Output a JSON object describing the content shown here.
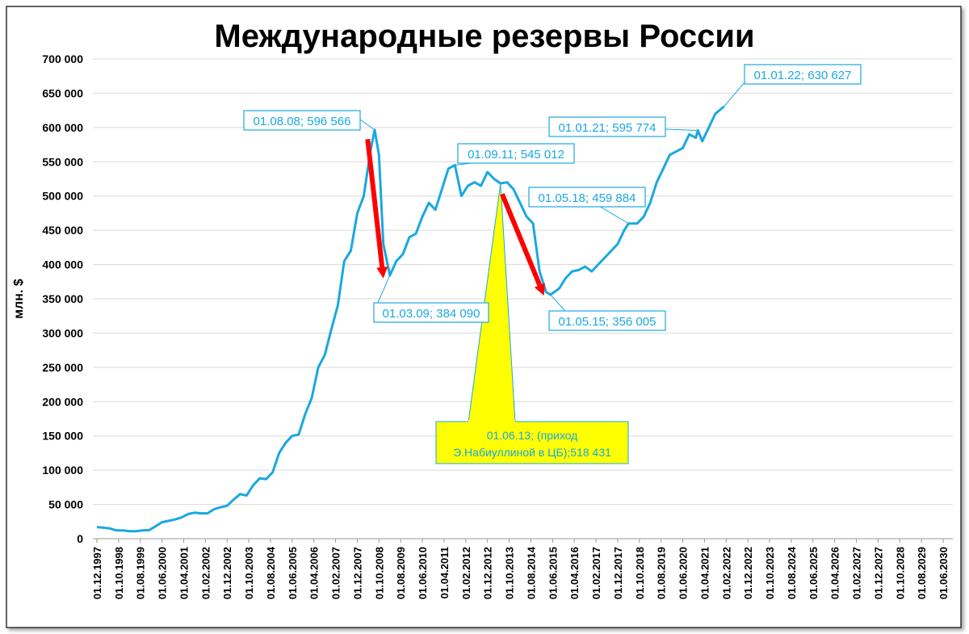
{
  "chart_data": {
    "type": "line",
    "title": "Международные резервы России",
    "ylabel": "млн. $",
    "xlabel": "",
    "ylim": [
      0,
      700000
    ],
    "grid": true,
    "line_color": "#1AA8E0",
    "arrow_color": "#FF0000",
    "y_ticks": [
      {
        "value": 0,
        "label": "0"
      },
      {
        "value": 50000,
        "label": "50 000"
      },
      {
        "value": 100000,
        "label": "100 000"
      },
      {
        "value": 150000,
        "label": "150 000"
      },
      {
        "value": 200000,
        "label": "200 000"
      },
      {
        "value": 250000,
        "label": "250 000"
      },
      {
        "value": 300000,
        "label": "300 000"
      },
      {
        "value": 350000,
        "label": "350 000"
      },
      {
        "value": 400000,
        "label": "400 000"
      },
      {
        "value": 450000,
        "label": "450 000"
      },
      {
        "value": 500000,
        "label": "500 000"
      },
      {
        "value": 550000,
        "label": "550 000"
      },
      {
        "value": 600000,
        "label": "600 000"
      },
      {
        "value": 650000,
        "label": "650 000"
      },
      {
        "value": 700000,
        "label": "700 000"
      }
    ],
    "x_ticks": [
      "01.12.1997",
      "01.10.1998",
      "01.08.1999",
      "01.06.2000",
      "01.04.2001",
      "01.02.2002",
      "01.12.2002",
      "01.10.2003",
      "01.08.2004",
      "01.06.2005",
      "01.04.2006",
      "01.02.2007",
      "01.12.2007",
      "01.10.2008",
      "01.08.2009",
      "01.06.2010",
      "01.04.2011",
      "01.02.2012",
      "01.12.2012",
      "01.10.2013",
      "01.08.2014",
      "01.06.2015",
      "01.04.2016",
      "01.02.2017",
      "01.12.2017",
      "01.10.2018",
      "01.08.2019",
      "01.06.2020",
      "01.04.2021",
      "01.02.2022",
      "01.12.2022",
      "01.10.2023",
      "01.08.2024",
      "01.06.2025",
      "01.04.2026",
      "01.02.2027",
      "01.12.2027",
      "01.10.2028",
      "01.08.2029",
      "01.06.2030"
    ],
    "series": [
      {
        "x": [
          "1997-12",
          "1998-03",
          "1998-06",
          "1998-09",
          "1998-12",
          "1999-03",
          "1999-06",
          "1999-09",
          "1999-12",
          "2000-03",
          "2000-06",
          "2000-09",
          "2000-12",
          "2001-03",
          "2001-06",
          "2001-09",
          "2001-12",
          "2002-03",
          "2002-06",
          "2002-09",
          "2002-12",
          "2003-03",
          "2003-06",
          "2003-09",
          "2003-12",
          "2004-03",
          "2004-06",
          "2004-09",
          "2004-12",
          "2005-03",
          "2005-06",
          "2005-09",
          "2005-12",
          "2006-03",
          "2006-06",
          "2006-09",
          "2006-12",
          "2007-03",
          "2007-06",
          "2007-09",
          "2007-12",
          "2008-03",
          "2008-06",
          "2008-08",
          "2008-10",
          "2008-12",
          "2009-03",
          "2009-06",
          "2009-09",
          "2009-12",
          "2010-03",
          "2010-06",
          "2010-09",
          "2010-12",
          "2011-03",
          "2011-06",
          "2011-09",
          "2011-12",
          "2012-03",
          "2012-06",
          "2012-09",
          "2012-12",
          "2013-03",
          "2013-06",
          "2013-09",
          "2013-12",
          "2014-03",
          "2014-06",
          "2014-09",
          "2014-12",
          "2015-03",
          "2015-05",
          "2015-09",
          "2015-12",
          "2016-03",
          "2016-06",
          "2016-09",
          "2016-12",
          "2017-03",
          "2017-06",
          "2017-09",
          "2017-12",
          "2018-03",
          "2018-05",
          "2018-09",
          "2018-12",
          "2019-03",
          "2019-06",
          "2019-09",
          "2019-12",
          "2020-03",
          "2020-06",
          "2020-09",
          "2020-12",
          "2021-01",
          "2021-03",
          "2021-06",
          "2021-09",
          "2021-12",
          "2022-01"
        ],
        "values": [
          17000,
          16000,
          15000,
          12000,
          12000,
          11000,
          11000,
          12000,
          12500,
          18000,
          24000,
          26000,
          28000,
          31000,
          36000,
          38000,
          37000,
          37000,
          43000,
          46000,
          48000,
          57000,
          65000,
          63000,
          78000,
          88000,
          87000,
          97000,
          125000,
          140000,
          150000,
          152000,
          182000,
          205000,
          250000,
          268000,
          305000,
          340000,
          405000,
          420000,
          475000,
          500000,
          565000,
          596566,
          560000,
          430000,
          384090,
          405000,
          415000,
          440000,
          445000,
          470000,
          490000,
          480000,
          510000,
          540000,
          545012,
          500000,
          515000,
          520000,
          515000,
          535000,
          525000,
          518431,
          520000,
          510000,
          490000,
          470000,
          460000,
          390000,
          360000,
          356005,
          365000,
          380000,
          390000,
          392000,
          397000,
          390000,
          400000,
          410000,
          420000,
          430000,
          450000,
          459884,
          460000,
          470000,
          490000,
          520000,
          540000,
          560000,
          565000,
          570000,
          590000,
          585000,
          595774,
          580000,
          600000,
          620000,
          628000,
          630627
        ]
      }
    ],
    "annotations": [
      {
        "label": "01.08.08; 596 566",
        "x": "2008-08",
        "value": 596566
      },
      {
        "label": "01.03.09; 384 090",
        "x": "2009-03",
        "value": 384090
      },
      {
        "label": "01.09.11; 545 012",
        "x": "2011-09",
        "value": 545012
      },
      {
        "label": "01.05.15; 356 005",
        "x": "2015-05",
        "value": 356005
      },
      {
        "label": "01.05.18; 459 884",
        "x": "2018-05",
        "value": 459884
      },
      {
        "label": "01.01.21; 595 774",
        "x": "2021-01",
        "value": 595774
      },
      {
        "label": "01.01.22; 630 627",
        "x": "2022-01",
        "value": 630627
      }
    ],
    "callout": {
      "line1": "01.06.13; (приход",
      "line2": "Э.Набиуллиной в ЦБ);518 431",
      "x": "2013-06",
      "value": 518431,
      "fill": "#FFFF00"
    }
  }
}
